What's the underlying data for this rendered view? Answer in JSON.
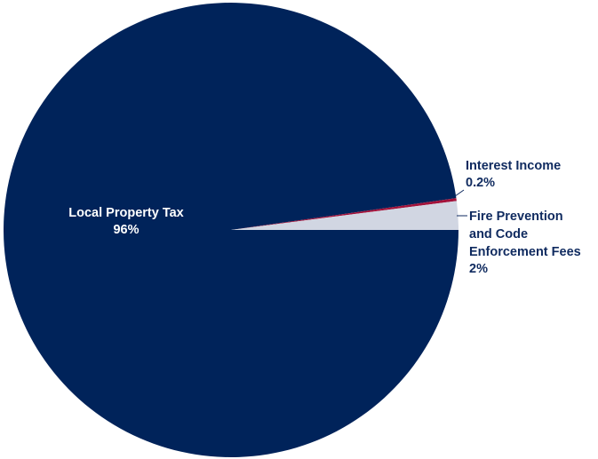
{
  "chart_data": {
    "type": "pie",
    "title": "",
    "slices": [
      {
        "name": "Local Property Tax",
        "value": 96,
        "display": "96%",
        "color": "#00235a"
      },
      {
        "name": "Interest Income",
        "value": 0.2,
        "display": "0.2%",
        "color": "#a3123a"
      },
      {
        "name": "Fire Prevention and Code Enforcement Fees",
        "value": 2,
        "display": "2%",
        "color": "#d1d6e2"
      }
    ],
    "labels": {
      "property_tax": {
        "lines": [
          "Local Property Tax",
          "96%"
        ]
      },
      "interest": {
        "lines": [
          "Interest Income",
          "0.2%"
        ]
      },
      "fire": {
        "lines": [
          "Fire Prevention",
          "and Code",
          "Enforcement Fees",
          "2%"
        ]
      }
    }
  }
}
